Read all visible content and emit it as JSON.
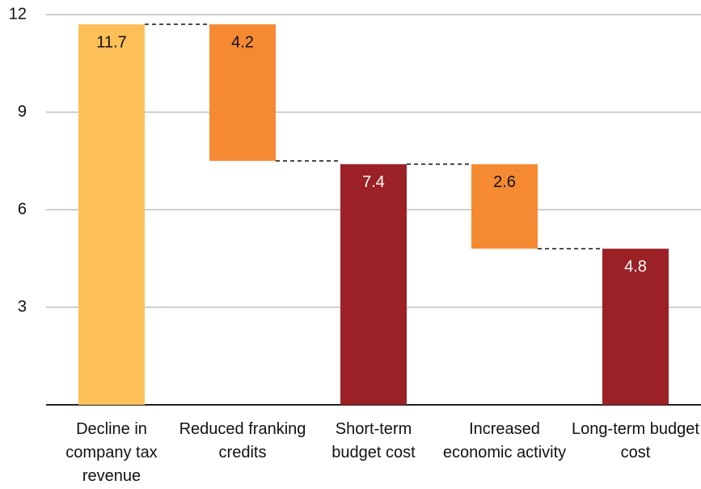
{
  "chart_data": {
    "type": "waterfall",
    "categories": [
      "Decline in company tax revenue",
      "Reduced franking credits",
      "Short-term budget cost",
      "Increased economic activity",
      "Long-term budget cost"
    ],
    "values": [
      11.7,
      4.2,
      7.4,
      2.6,
      4.8
    ],
    "kinds": [
      "total",
      "decrease",
      "total",
      "decrease",
      "total"
    ],
    "colors": [
      "#fdbf57",
      "#f58a33",
      "#9b2126",
      "#f58a33",
      "#9b2126"
    ],
    "ylim": [
      0,
      12
    ],
    "yticks": [
      3,
      6,
      9,
      12
    ],
    "grid": true
  }
}
